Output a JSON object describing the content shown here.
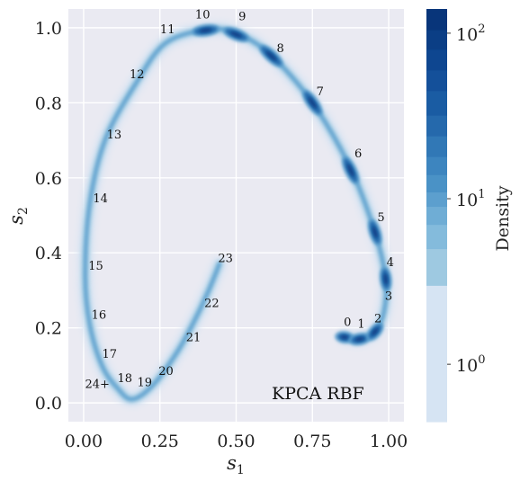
{
  "chart_data": {
    "type": "scatter",
    "title": "",
    "xlabel_main": "s",
    "xlabel_sub": "1",
    "ylabel_main": "s",
    "ylabel_sub": "2",
    "xlim": [
      -0.05,
      1.05
    ],
    "ylim": [
      -0.05,
      1.05
    ],
    "xticks": [
      0.0,
      0.25,
      0.5,
      0.75,
      1.0
    ],
    "xtick_labels": [
      "0.00",
      "0.25",
      "0.50",
      "0.75",
      "1.00"
    ],
    "yticks": [
      0.0,
      0.2,
      0.4,
      0.6,
      0.8,
      1.0
    ],
    "ytick_labels": [
      "0.0",
      "0.2",
      "0.4",
      "0.6",
      "0.8",
      "1.0"
    ],
    "grid": true,
    "method_label": "KPCA RBF",
    "curve": [
      {
        "x": 0.855,
        "y": 0.175
      },
      {
        "x": 0.905,
        "y": 0.17
      },
      {
        "x": 0.955,
        "y": 0.19
      },
      {
        "x": 0.985,
        "y": 0.245
      },
      {
        "x": 0.99,
        "y": 0.33
      },
      {
        "x": 0.955,
        "y": 0.455
      },
      {
        "x": 0.875,
        "y": 0.625
      },
      {
        "x": 0.75,
        "y": 0.8
      },
      {
        "x": 0.61,
        "y": 0.93
      },
      {
        "x": 0.5,
        "y": 0.985
      },
      {
        "x": 0.41,
        "y": 0.995
      },
      {
        "x": 0.27,
        "y": 0.96
      },
      {
        "x": 0.17,
        "y": 0.85
      },
      {
        "x": 0.07,
        "y": 0.7
      },
      {
        "x": 0.02,
        "y": 0.53
      },
      {
        "x": 0.005,
        "y": 0.34
      },
      {
        "x": 0.02,
        "y": 0.21
      },
      {
        "x": 0.06,
        "y": 0.1
      },
      {
        "x": 0.11,
        "y": 0.04
      },
      {
        "x": 0.16,
        "y": 0.01
      },
      {
        "x": 0.23,
        "y": 0.05
      },
      {
        "x": 0.31,
        "y": 0.14
      },
      {
        "x": 0.37,
        "y": 0.23
      },
      {
        "x": 0.41,
        "y": 0.3
      },
      {
        "x": 0.445,
        "y": 0.37
      }
    ],
    "dense_clusters": [
      {
        "x": 0.855,
        "y": 0.175,
        "size": 1.0
      },
      {
        "x": 0.905,
        "y": 0.17,
        "size": 1.2
      },
      {
        "x": 0.955,
        "y": 0.19,
        "size": 1.2
      },
      {
        "x": 0.99,
        "y": 0.33,
        "size": 1.4
      },
      {
        "x": 0.955,
        "y": 0.455,
        "size": 1.6
      },
      {
        "x": 0.875,
        "y": 0.62,
        "size": 1.8
      },
      {
        "x": 0.75,
        "y": 0.8,
        "size": 1.8
      },
      {
        "x": 0.615,
        "y": 0.925,
        "size": 1.8
      },
      {
        "x": 0.5,
        "y": 0.982,
        "size": 1.6
      },
      {
        "x": 0.4,
        "y": 0.993,
        "size": 1.6
      }
    ],
    "annotations": [
      {
        "text": "0",
        "x": 0.865,
        "y": 0.205
      },
      {
        "text": "1",
        "x": 0.91,
        "y": 0.2
      },
      {
        "text": "2",
        "x": 0.965,
        "y": 0.215
      },
      {
        "text": "3",
        "x": 1.0,
        "y": 0.275
      },
      {
        "text": "4",
        "x": 1.005,
        "y": 0.365
      },
      {
        "text": "5",
        "x": 0.975,
        "y": 0.485
      },
      {
        "text": "6",
        "x": 0.9,
        "y": 0.655
      },
      {
        "text": "7",
        "x": 0.775,
        "y": 0.82
      },
      {
        "text": "8",
        "x": 0.645,
        "y": 0.935
      },
      {
        "text": "9",
        "x": 0.52,
        "y": 1.02
      },
      {
        "text": "10",
        "x": 0.39,
        "y": 1.025
      },
      {
        "text": "11",
        "x": 0.275,
        "y": 0.985
      },
      {
        "text": "12",
        "x": 0.175,
        "y": 0.865
      },
      {
        "text": "13",
        "x": 0.1,
        "y": 0.705
      },
      {
        "text": "14",
        "x": 0.055,
        "y": 0.535
      },
      {
        "text": "15",
        "x": 0.04,
        "y": 0.355
      },
      {
        "text": "16",
        "x": 0.05,
        "y": 0.225
      },
      {
        "text": "17",
        "x": 0.085,
        "y": 0.12
      },
      {
        "text": "18",
        "x": 0.135,
        "y": 0.055
      },
      {
        "text": "19",
        "x": 0.2,
        "y": 0.045
      },
      {
        "text": "20",
        "x": 0.27,
        "y": 0.075
      },
      {
        "text": "21",
        "x": 0.36,
        "y": 0.165
      },
      {
        "text": "22",
        "x": 0.42,
        "y": 0.255
      },
      {
        "text": "23",
        "x": 0.465,
        "y": 0.375
      },
      {
        "text": "24+",
        "x": 0.045,
        "y": 0.04
      }
    ],
    "colorbar": {
      "label": "Density",
      "scale": "log",
      "range": [
        0.45,
        140
      ],
      "ticks": [
        {
          "value": 1,
          "base": "10",
          "exp": "0"
        },
        {
          "value": 10,
          "base": "10",
          "exp": "1"
        },
        {
          "value": 100,
          "base": "10",
          "exp": "2"
        }
      ],
      "levels": [
        0.45,
        3,
        5,
        7,
        9,
        11,
        14,
        18,
        24,
        32,
        45,
        60,
        80,
        105,
        140
      ],
      "colors": [
        "#d6e4f3",
        "#9ec9e1",
        "#84bbdc",
        "#6fadd5",
        "#5c9fce",
        "#4a92c6",
        "#3d85bf",
        "#3178b6",
        "#2569ac",
        "#1a5ca3",
        "#14509a",
        "#0e4690",
        "#0b3e85",
        "#08357a"
      ]
    },
    "palette": {
      "light": "#d6e4f3",
      "mid": "#5c9fce",
      "dark": "#0b3e85",
      "plot_bg": "#eaeaf2",
      "grid": "#ffffff"
    }
  }
}
